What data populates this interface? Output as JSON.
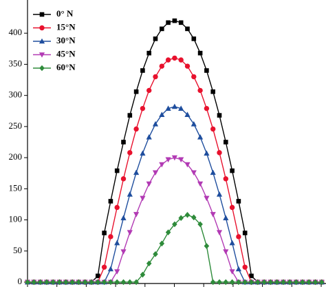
{
  "chart_data": {
    "type": "line",
    "categories": [
      null,
      null,
      null,
      null,
      null,
      null,
      null,
      null,
      null,
      null,
      null,
      null,
      null,
      null,
      null,
      null,
      null,
      null,
      null,
      null,
      null,
      null,
      null,
      null,
      null,
      null,
      null,
      null,
      null,
      null,
      null,
      null,
      null,
      null,
      null,
      null,
      null,
      null,
      null,
      null,
      null,
      null,
      null,
      null,
      null,
      null,
      null
    ],
    "series": [
      {
        "name": "0° N",
        "color": "#000000",
        "marker": "square",
        "values": [
          0,
          0,
          0,
          0,
          0,
          0,
          0,
          0,
          0,
          0,
          0,
          10,
          79,
          130,
          179,
          225,
          268,
          306,
          340,
          368,
          391,
          407,
          417,
          420,
          417,
          407,
          391,
          368,
          340,
          306,
          268,
          225,
          179,
          130,
          79,
          10,
          0,
          0,
          0,
          0,
          0,
          0,
          0,
          0,
          0,
          0,
          0
        ]
      },
      {
        "name": "15°N",
        "color": "#e8112d",
        "marker": "circle",
        "values": [
          0,
          0,
          0,
          0,
          0,
          0,
          0,
          0,
          0,
          0,
          0,
          0,
          24,
          73,
          120,
          166,
          208,
          246,
          279,
          308,
          330,
          347,
          357,
          360,
          357,
          347,
          330,
          308,
          279,
          246,
          208,
          166,
          120,
          73,
          24,
          0,
          0,
          0,
          0,
          0,
          0,
          0,
          0,
          0,
          0,
          0,
          0
        ]
      },
      {
        "name": "30°N",
        "color": "#1f4e9e",
        "marker": "triangle-up",
        "values": [
          0,
          0,
          0,
          0,
          0,
          0,
          0,
          0,
          0,
          0,
          0,
          0,
          0,
          21,
          63,
          103,
          141,
          176,
          207,
          233,
          254,
          269,
          279,
          282,
          279,
          269,
          254,
          233,
          207,
          176,
          141,
          103,
          63,
          21,
          0,
          0,
          0,
          0,
          0,
          0,
          0,
          0,
          0,
          0,
          0,
          0,
          0
        ]
      },
      {
        "name": "45°N",
        "color": "#b23ab4",
        "marker": "triangle-down",
        "values": [
          0,
          0,
          0,
          0,
          0,
          0,
          0,
          0,
          0,
          0,
          0,
          0,
          0,
          0,
          17,
          49,
          80,
          109,
          135,
          158,
          176,
          189,
          197,
          200,
          197,
          189,
          176,
          158,
          135,
          109,
          80,
          49,
          17,
          0,
          0,
          0,
          0,
          0,
          0,
          0,
          0,
          0,
          0,
          0,
          0,
          0,
          0
        ]
      },
      {
        "name": "60°N",
        "color": "#2e8b3a",
        "marker": "diamond",
        "values": [
          0,
          0,
          0,
          0,
          0,
          0,
          0,
          0,
          0,
          0,
          0,
          0,
          0,
          0,
          0,
          0,
          0,
          0,
          12,
          30,
          45,
          62,
          80,
          93,
          103,
          108,
          104,
          93,
          58,
          0,
          0,
          0,
          0,
          0,
          0,
          0,
          0,
          0,
          0,
          0,
          0,
          0,
          0,
          0,
          0,
          0,
          0
        ]
      }
    ],
    "ylim": [
      0,
      450
    ],
    "yticks": [
      0,
      50,
      100,
      150,
      200,
      250,
      300,
      350,
      400
    ],
    "legend": "upper left"
  }
}
